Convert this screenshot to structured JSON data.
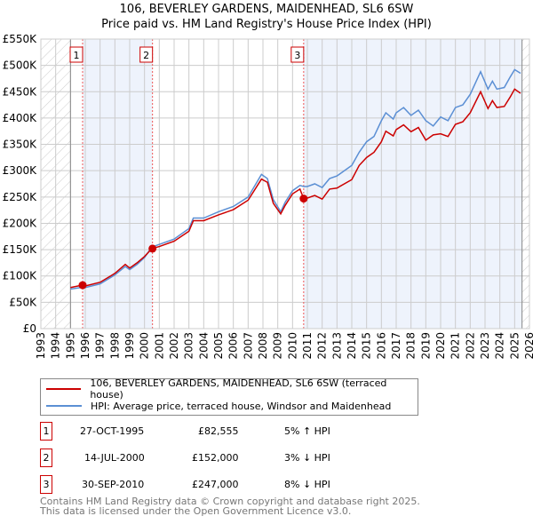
{
  "title": "106, BEVERLEY GARDENS, MAIDENHEAD, SL6 6SW",
  "subtitle": "Price paid vs. HM Land Registry's House Price Index (HPI)",
  "chart_data": {
    "type": "line",
    "xlim": [
      1993,
      2026
    ],
    "ylim": [
      0,
      550000
    ],
    "y_ticks": [
      {
        "v": 0,
        "label": "£0"
      },
      {
        "v": 50000,
        "label": "£50K"
      },
      {
        "v": 100000,
        "label": "£100K"
      },
      {
        "v": 150000,
        "label": "£150K"
      },
      {
        "v": 200000,
        "label": "£200K"
      },
      {
        "v": 250000,
        "label": "£250K"
      },
      {
        "v": 300000,
        "label": "£300K"
      },
      {
        "v": 350000,
        "label": "£350K"
      },
      {
        "v": 400000,
        "label": "£400K"
      },
      {
        "v": 450000,
        "label": "£450K"
      },
      {
        "v": 500000,
        "label": "£500K"
      },
      {
        "v": 550000,
        "label": "£550K"
      }
    ],
    "x_ticks": [
      "1993",
      "1994",
      "1995",
      "1996",
      "1997",
      "1998",
      "1999",
      "2000",
      "2001",
      "2002",
      "2003",
      "2004",
      "2005",
      "2006",
      "2007",
      "2008",
      "2009",
      "2010",
      "2011",
      "2012",
      "2013",
      "2014",
      "2015",
      "2016",
      "2017",
      "2018",
      "2019",
      "2020",
      "2021",
      "2022",
      "2023",
      "2024",
      "2025",
      "2026"
    ],
    "hatch_before": 1995.0,
    "hatch_after": 2025.5,
    "series": [
      {
        "name": "106, BEVERLEY GARDENS, MAIDENHEAD, SL6 6SW (terraced house)",
        "color": "#cc0000",
        "x": [
          1995.0,
          1995.8,
          1996,
          1997,
          1998,
          1998.7,
          1999,
          1999.5,
          2000,
          2000.5,
          2001,
          2002,
          2003,
          2003.3,
          2004,
          2005,
          2006,
          2007,
          2007.9,
          2008.3,
          2008.7,
          2009.2,
          2009.5,
          2010,
          2010.5,
          2010.75,
          2011,
          2011.5,
          2012,
          2012.5,
          2013,
          2014,
          2014.5,
          2015,
          2015.5,
          2016,
          2016.3,
          2016.8,
          2017,
          2017.5,
          2018,
          2018.5,
          2019,
          2019.5,
          2020,
          2020.5,
          2021,
          2021.5,
          2022,
          2022.7,
          2023.2,
          2023.5,
          2023.8,
          2024.3,
          2024.7,
          2025.0,
          2025.4
        ],
        "y": [
          78000,
          82555,
          81000,
          88000,
          105000,
          122000,
          115000,
          125000,
          137000,
          152000,
          156000,
          166000,
          185000,
          205000,
          205000,
          216000,
          226000,
          244000,
          284000,
          278000,
          238000,
          218000,
          234000,
          256000,
          265000,
          247000,
          248000,
          253000,
          246000,
          265000,
          267000,
          283000,
          310000,
          325000,
          335000,
          355000,
          375000,
          366000,
          378000,
          387000,
          374000,
          382000,
          358000,
          368000,
          370000,
          365000,
          388000,
          393000,
          410000,
          450000,
          418000,
          433000,
          420000,
          422000,
          440000,
          455000,
          447000
        ]
      },
      {
        "name": "HPI: Average price, terraced house, Windsor and Maidenhead",
        "color": "#5b8fd4",
        "x": [
          1995.0,
          1995.8,
          1996,
          1997,
          1998,
          1998.7,
          1999,
          1999.5,
          2000,
          2000.5,
          2001,
          2002,
          2003,
          2003.3,
          2004,
          2005,
          2006,
          2007,
          2007.9,
          2008.3,
          2008.7,
          2009.2,
          2009.5,
          2010,
          2010.5,
          2010.75,
          2011,
          2011.5,
          2012,
          2012.5,
          2013,
          2014,
          2014.5,
          2015,
          2015.5,
          2016,
          2016.3,
          2016.8,
          2017,
          2017.5,
          2018,
          2018.5,
          2019,
          2019.5,
          2020,
          2020.5,
          2021,
          2021.5,
          2022,
          2022.7,
          2023.2,
          2023.5,
          2023.8,
          2024.3,
          2024.7,
          2025.0,
          2025.4
        ],
        "y": [
          75000,
          78500,
          78000,
          85000,
          102000,
          118000,
          112000,
          122000,
          135000,
          155000,
          160000,
          170000,
          190000,
          210000,
          210000,
          222000,
          232000,
          250000,
          293000,
          285000,
          245000,
          222000,
          240000,
          262000,
          272000,
          270000,
          270000,
          275000,
          268000,
          285000,
          290000,
          310000,
          335000,
          355000,
          365000,
          395000,
          410000,
          398000,
          410000,
          420000,
          405000,
          415000,
          395000,
          385000,
          402000,
          395000,
          420000,
          425000,
          445000,
          488000,
          455000,
          470000,
          455000,
          458000,
          478000,
          492000,
          485000
        ]
      }
    ],
    "sales": [
      {
        "label": "1",
        "x": 1995.82,
        "y": 82555,
        "date": "27-OCT-1995",
        "price": "£82,555",
        "hpi": "5% ↑ HPI"
      },
      {
        "label": "2",
        "x": 2000.54,
        "y": 152000,
        "date": "14-JUL-2000",
        "price": "£152,000",
        "hpi": "3% ↓ HPI"
      },
      {
        "label": "3",
        "x": 2010.75,
        "y": 247000,
        "date": "30-SEP-2010",
        "price": "£247,000",
        "hpi": "8% ↓ HPI"
      }
    ]
  },
  "footer": [
    "Contains HM Land Registry data © Crown copyright and database right 2025.",
    "This data is licensed under the Open Government Licence v3.0."
  ]
}
